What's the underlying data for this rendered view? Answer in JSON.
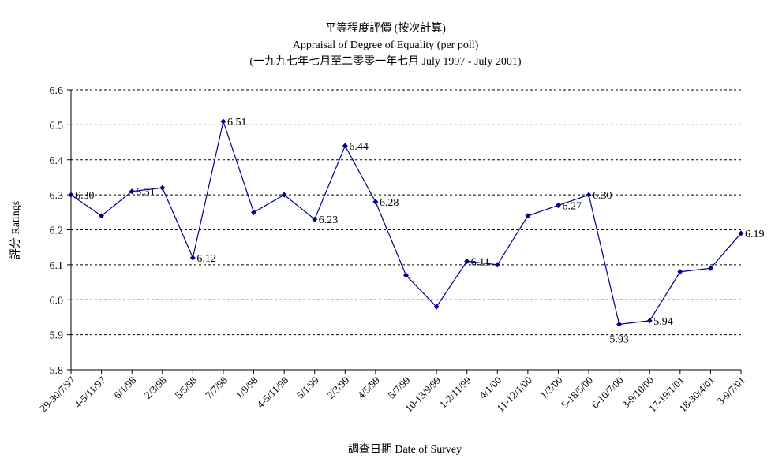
{
  "chart_data": {
    "type": "line",
    "title": "平等程度評價 (按次計算)",
    "subtitle": "Appraisal of Degree of Equality (per poll)",
    "subtitle2": "(一九九七年七月至二零零一年七月 July 1997 - July 2001)",
    "xlabel": "調查日期 Date of Survey",
    "ylabel": "評分 Ratings",
    "ylim": [
      5.8,
      6.6
    ],
    "yticks": [
      "6.6",
      "6.5",
      "6.4",
      "6.3",
      "6.2",
      "6.1",
      "6.0",
      "5.9",
      "5.8"
    ],
    "grid": true,
    "line_color": "#00008b",
    "categories": [
      "29-30/7/97",
      "4-5/11/97",
      "6/1/98",
      "2/3/98",
      "5/5/98",
      "7/7/98",
      "1/9/98",
      "4-5/11/98",
      "5/1/99",
      "2/3/99",
      "4/5/99",
      "5/7/99",
      "10-13/9/99",
      "1-2/11/99",
      "4/1/00",
      "11-12/1/00",
      "1/3/00",
      "5-18/5/00",
      "6-10/7/00",
      "3-9/10/00",
      "17-19/1/01",
      "18-30/4/01",
      "3-9/7/01"
    ],
    "values": [
      6.3,
      6.24,
      6.31,
      6.32,
      6.12,
      6.51,
      6.25,
      6.3,
      6.23,
      6.44,
      6.28,
      6.07,
      5.98,
      6.11,
      6.1,
      6.24,
      6.27,
      6.3,
      5.93,
      5.94,
      6.08,
      6.09,
      6.19
    ],
    "data_labels": [
      "6.30",
      "",
      "6.31",
      "",
      "6.12",
      "6.51",
      "",
      "",
      "6.23",
      "6.44",
      "6.28",
      "",
      "",
      "6.11",
      "",
      "",
      "6.27",
      "6.30",
      "5.93",
      "5.94",
      "",
      "",
      "6.19"
    ]
  }
}
